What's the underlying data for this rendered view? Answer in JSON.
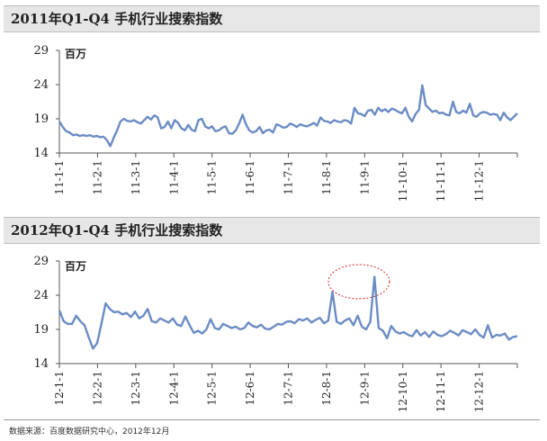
{
  "panels": [
    {
      "title": "2011年Q1-Q4 手机行业搜索指数",
      "unit": "百万"
    },
    {
      "title": "2012年Q1-Q4 手机行业搜索指数",
      "unit": "百万"
    }
  ],
  "source": "数据来源：百度数据研究中心，2012年12月",
  "colors": {
    "line": "#6b8cc4",
    "annotation": "#e02020"
  },
  "chart_data": [
    {
      "type": "line",
      "title": "2011年Q1-Q4 手机行业搜索指数",
      "ylabel": "百万",
      "ylim": [
        14,
        29
      ],
      "yticks": [
        14,
        19,
        24,
        29
      ],
      "xticks": [
        "11-1-1",
        "11-2-1",
        "11-3-1",
        "11-4-1",
        "11-5-1",
        "11-6-1",
        "11-7-1",
        "11-8-1",
        "11-9-1",
        "11-10-1",
        "11-11-1",
        "11-12-1"
      ],
      "grid": false,
      "series": [
        {
          "values": [
            18.6,
            17.8,
            17.2,
            17.0,
            16.6,
            16.7,
            16.5,
            16.6,
            16.5,
            16.6,
            16.4,
            16.5,
            16.3,
            16.4,
            15.9,
            15.0,
            16.2,
            17.3,
            18.6,
            19.0,
            18.7,
            18.6,
            18.8,
            18.5,
            18.3,
            18.8,
            19.3,
            18.9,
            19.5,
            19.2,
            17.6,
            17.8,
            18.6,
            17.6,
            18.8,
            18.4,
            17.6,
            17.3,
            18.1,
            17.4,
            17.2,
            18.8,
            19.0,
            17.9,
            17.6,
            17.9,
            17.2,
            17.3,
            17.7,
            17.9,
            16.9,
            16.8,
            17.3,
            18.3,
            19.6,
            18.2,
            17.3,
            17.0,
            17.2,
            17.8,
            16.9,
            17.3,
            17.4,
            17.0,
            18.2,
            18.0,
            17.7,
            17.8,
            18.3,
            18.1,
            17.8,
            18.2,
            18.0,
            17.9,
            18.1,
            18.4,
            18.0,
            19.2,
            18.7,
            18.6,
            18.4,
            18.8,
            18.6,
            18.5,
            18.8,
            18.7,
            18.3,
            20.6,
            19.8,
            19.7,
            19.4,
            20.2,
            20.3,
            19.6,
            20.6,
            20.1,
            20.4,
            20.0,
            20.5,
            20.3,
            20.0,
            19.8,
            20.6,
            19.3,
            18.6,
            19.7,
            20.3,
            23.9,
            21.0,
            20.5,
            20.0,
            20.2,
            19.8,
            19.9,
            19.6,
            19.5,
            21.5,
            20.0,
            19.8,
            20.2,
            19.9,
            21.2,
            19.5,
            19.3,
            19.8,
            20.0,
            19.9,
            19.6,
            19.7,
            19.6,
            18.8,
            19.9,
            19.2,
            18.8,
            19.3,
            19.8
          ]
        }
      ]
    },
    {
      "type": "line",
      "title": "2012年Q1-Q4 手机行业搜索指数",
      "ylabel": "百万",
      "ylim": [
        14,
        29
      ],
      "yticks": [
        14,
        19,
        24,
        29
      ],
      "xticks": [
        "12-1-1",
        "12-2-1",
        "12-3-1",
        "12-4-1",
        "12-5-1",
        "12-6-1",
        "12-7-1",
        "12-8-1",
        "12-9-1",
        "12-10-1",
        "12-11-1",
        "12-12-1"
      ],
      "grid": false,
      "series": [
        {
          "values": [
            21.8,
            20.2,
            19.8,
            19.8,
            21.0,
            20.2,
            19.6,
            17.8,
            16.2,
            17.0,
            19.8,
            22.8,
            22.0,
            21.5,
            21.6,
            21.2,
            21.4,
            20.8,
            21.6,
            20.6,
            21.0,
            22.0,
            20.2,
            20.0,
            20.6,
            20.3,
            20.0,
            20.6,
            19.7,
            19.5,
            20.9,
            19.6,
            18.5,
            18.8,
            18.4,
            19.0,
            20.5,
            19.2,
            19.0,
            19.8,
            19.5,
            19.2,
            19.4,
            19.0,
            19.2,
            20.0,
            19.5,
            19.3,
            19.7,
            19.1,
            19.0,
            19.4,
            19.8,
            19.7,
            20.1,
            20.2,
            19.9,
            20.5,
            20.3,
            20.6,
            20.0,
            20.4,
            20.7,
            19.9,
            20.3,
            24.5,
            20.1,
            19.8,
            20.3,
            20.6,
            19.6,
            21.0,
            19.4,
            19.0,
            20.1,
            26.7,
            19.2,
            18.8,
            17.7,
            19.5,
            18.7,
            18.4,
            18.6,
            18.2,
            18.0,
            18.9,
            18.1,
            18.6,
            17.9,
            18.7,
            18.2,
            18.0,
            18.3,
            18.8,
            18.5,
            18.1,
            18.9,
            18.6,
            18.3,
            19.0,
            18.2,
            17.8,
            19.6,
            17.8,
            18.2,
            18.1,
            18.4,
            17.5,
            17.9,
            18.0
          ]
        }
      ]
    }
  ]
}
